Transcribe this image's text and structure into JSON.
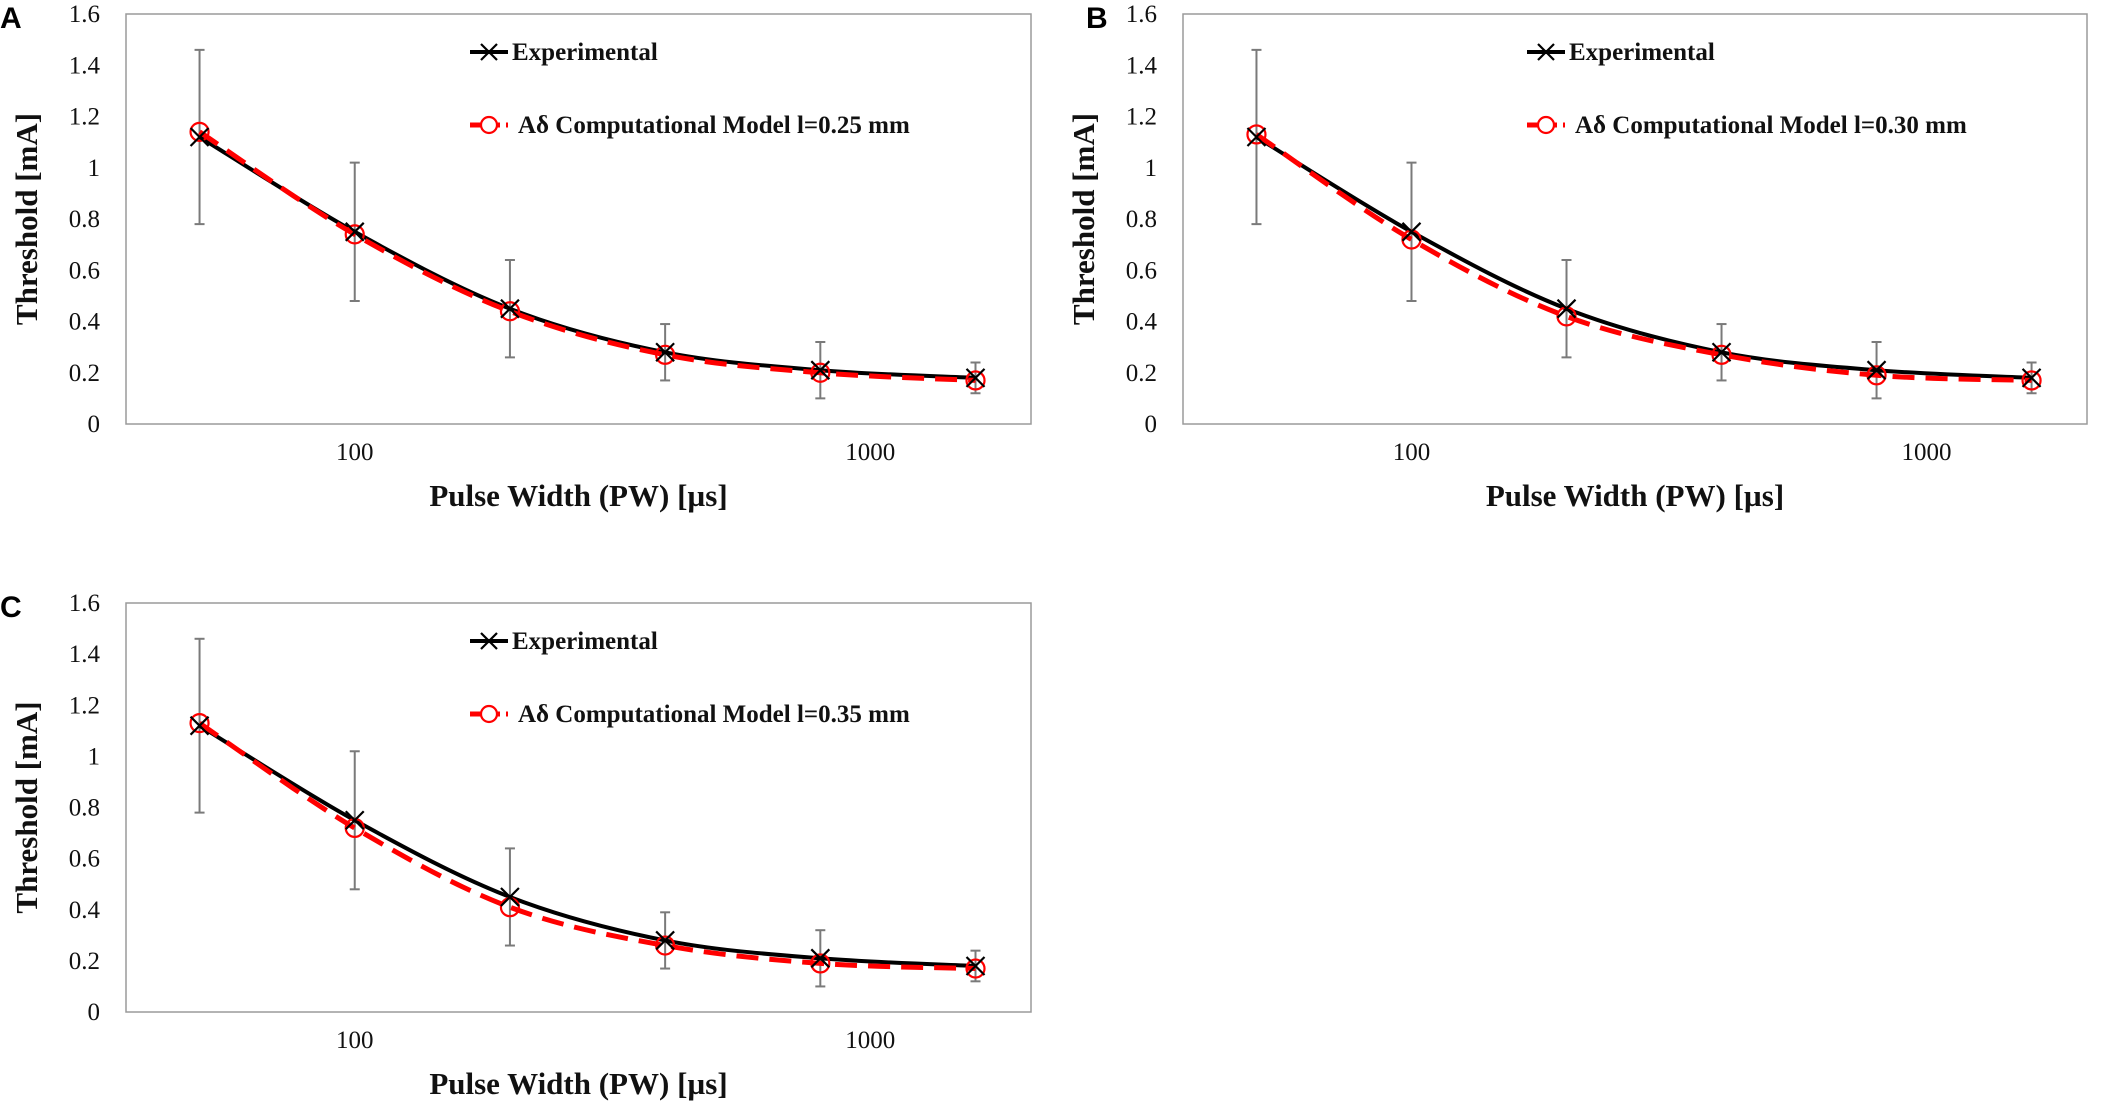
{
  "chart_data": [
    {
      "panel": "A",
      "type": "line",
      "xscale": "log",
      "xlabel": "Pulse Width (PW) [µs]",
      "ylabel": "Threshold [mA]",
      "ylim": [
        0,
        1.6
      ],
      "yticks": [
        "0",
        "0.2",
        "0.4",
        "0.6",
        "0.8",
        "1",
        "1.2",
        "1.4",
        "1.6"
      ],
      "xticks": [
        "100",
        "1000"
      ],
      "legend": [
        "Experimental",
        "Aδ Computational Model l=0.25 mm"
      ],
      "series": [
        {
          "name": "Experimental",
          "color": "#000000",
          "marker": "x",
          "x": [
            50,
            100,
            200,
            400,
            800,
            1600
          ],
          "y": [
            1.12,
            0.75,
            0.45,
            0.28,
            0.21,
            0.18
          ],
          "err": [
            0.34,
            0.27,
            0.19,
            0.11,
            0.11,
            0.06
          ]
        },
        {
          "name": "Aδ Computational Model l=0.25 mm",
          "color": "#ff0000",
          "marker": "o",
          "x": [
            50,
            100,
            200,
            400,
            800,
            1600
          ],
          "y": [
            1.14,
            0.74,
            0.44,
            0.27,
            0.2,
            0.17
          ]
        }
      ]
    },
    {
      "panel": "B",
      "type": "line",
      "xscale": "log",
      "xlabel": "Pulse Width (PW) [µs]",
      "ylabel": "Threshold [mA]",
      "ylim": [
        0,
        1.6
      ],
      "yticks": [
        "0",
        "0.2",
        "0.4",
        "0.6",
        "0.8",
        "1",
        "1.2",
        "1.4",
        "1.6"
      ],
      "xticks": [
        "100",
        "1000"
      ],
      "legend": [
        "Experimental",
        "Aδ Computational Model l=0.30 mm"
      ],
      "series": [
        {
          "name": "Experimental",
          "color": "#000000",
          "marker": "x",
          "x": [
            50,
            100,
            200,
            400,
            800,
            1600
          ],
          "y": [
            1.12,
            0.75,
            0.45,
            0.28,
            0.21,
            0.18
          ],
          "err": [
            0.34,
            0.27,
            0.19,
            0.11,
            0.11,
            0.06
          ]
        },
        {
          "name": "Aδ Computational Model l=0.30 mm",
          "color": "#ff0000",
          "marker": "o",
          "x": [
            50,
            100,
            200,
            400,
            800,
            1600
          ],
          "y": [
            1.13,
            0.72,
            0.42,
            0.27,
            0.19,
            0.17
          ]
        }
      ]
    },
    {
      "panel": "C",
      "type": "line",
      "xscale": "log",
      "xlabel": "Pulse Width (PW) [µs]",
      "ylabel": "Threshold [mA]",
      "ylim": [
        0,
        1.6
      ],
      "yticks": [
        "0",
        "0.2",
        "0.4",
        "0.6",
        "0.8",
        "1",
        "1.2",
        "1.4",
        "1.6"
      ],
      "xticks": [
        "100",
        "1000"
      ],
      "legend": [
        "Experimental",
        "Aδ Computational Model l=0.35 mm"
      ],
      "series": [
        {
          "name": "Experimental",
          "color": "#000000",
          "marker": "x",
          "x": [
            50,
            100,
            200,
            400,
            800,
            1600
          ],
          "y": [
            1.12,
            0.75,
            0.45,
            0.28,
            0.21,
            0.18
          ],
          "err": [
            0.34,
            0.27,
            0.19,
            0.11,
            0.11,
            0.06
          ]
        },
        {
          "name": "Aδ Computational Model l=0.35 mm",
          "color": "#ff0000",
          "marker": "o",
          "x": [
            50,
            100,
            200,
            400,
            800,
            1600
          ],
          "y": [
            1.13,
            0.72,
            0.41,
            0.26,
            0.19,
            0.17
          ]
        }
      ]
    }
  ]
}
